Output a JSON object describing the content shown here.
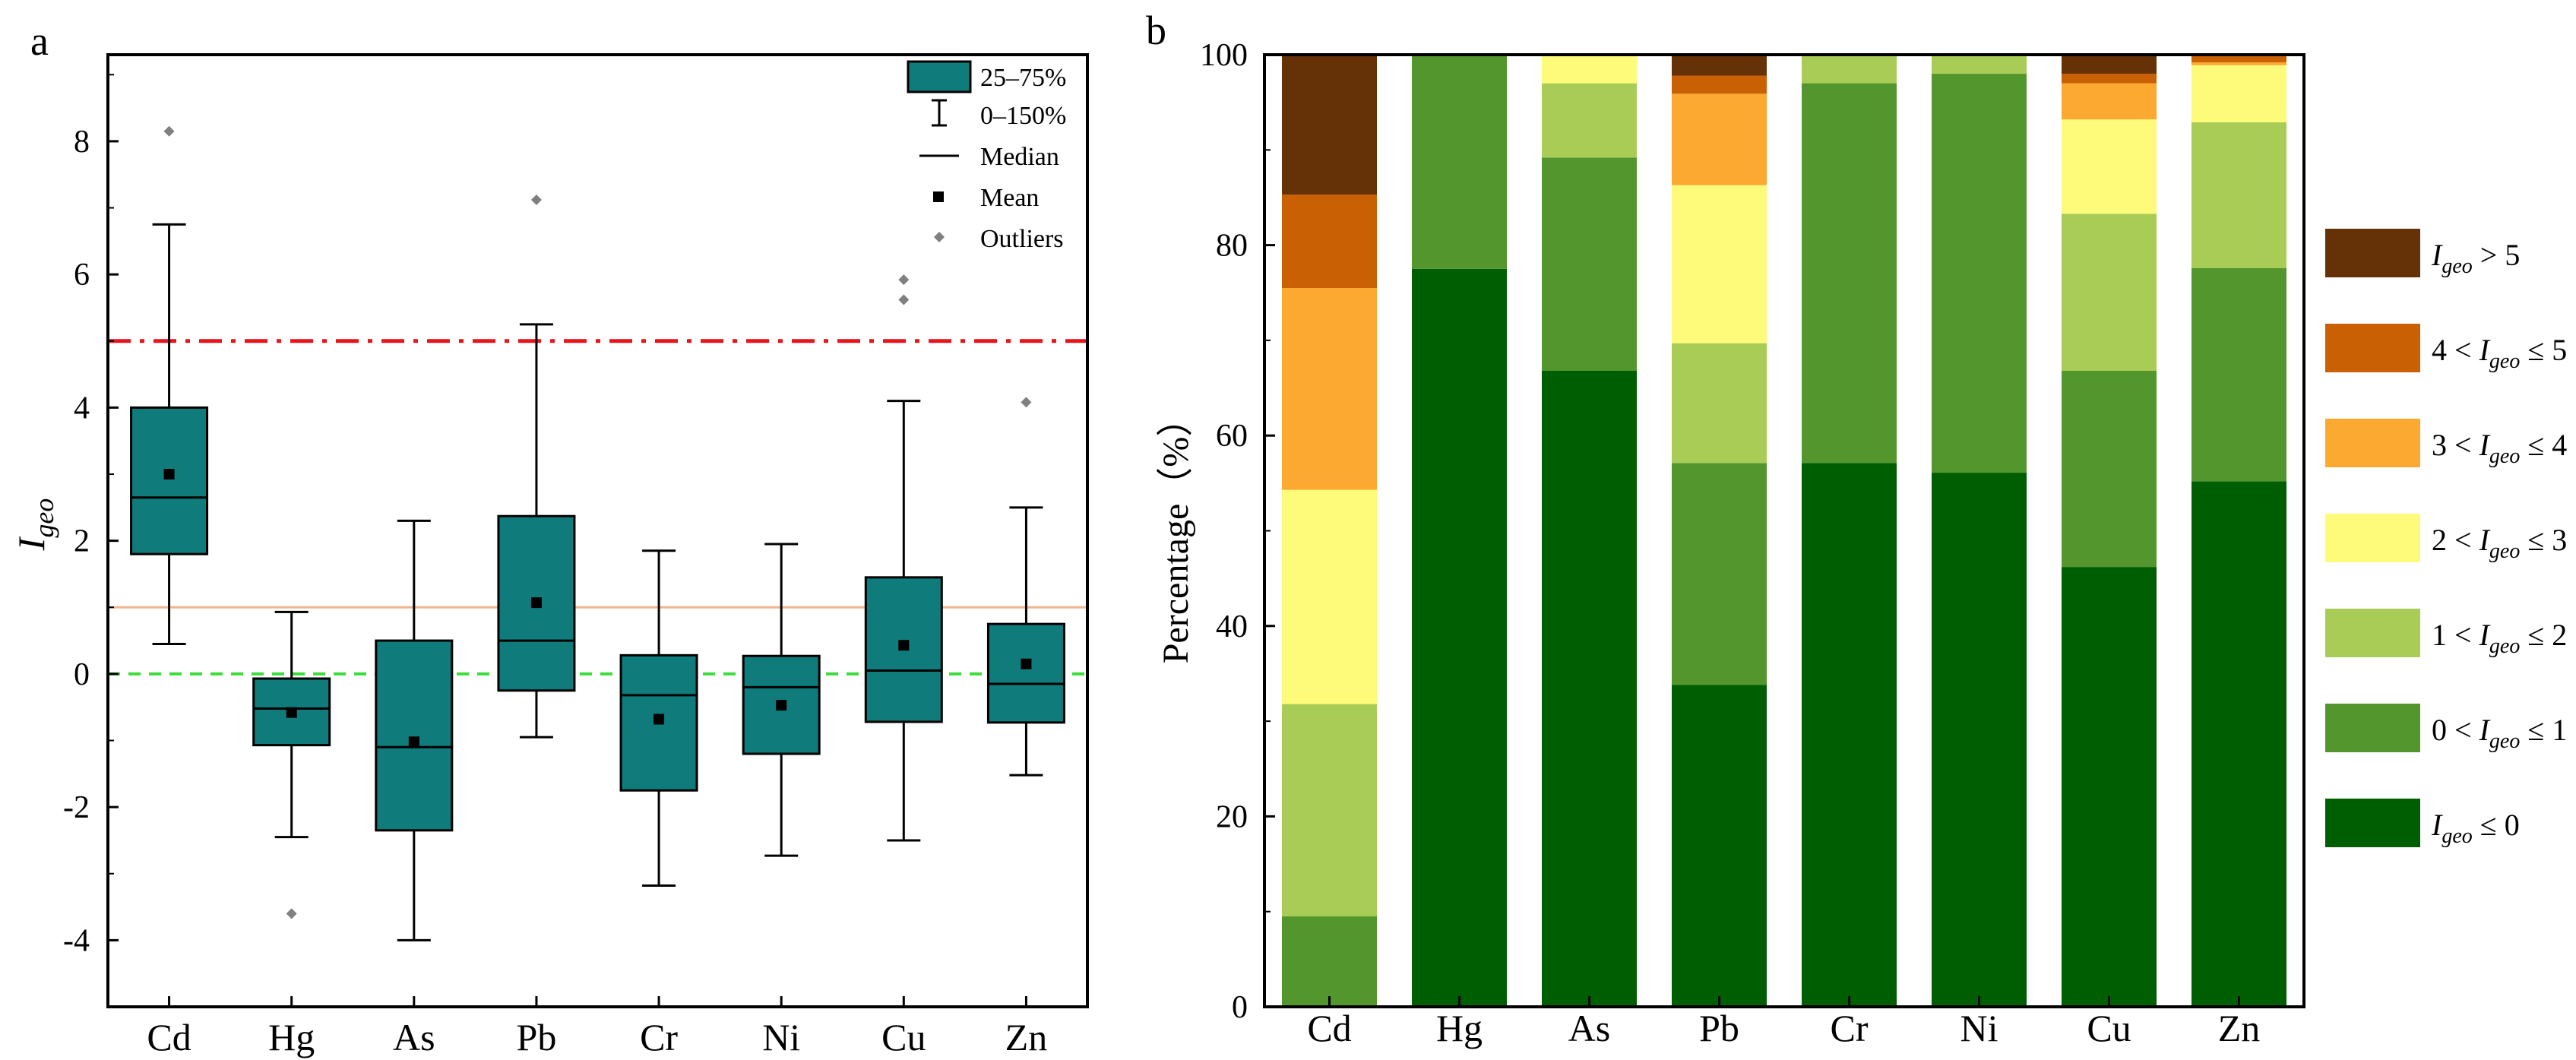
{
  "panel_a": {
    "label": "a",
    "y_axis_label": "I",
    "y_axis_label_sub": "geo",
    "y_ticks": [
      "-4",
      "-2",
      "0",
      "2",
      "4",
      "6",
      "8"
    ],
    "legend": {
      "box": "25–75%",
      "whisker": "0–150%",
      "median": "Median",
      "mean": "Mean",
      "outliers": "Outliers"
    }
  },
  "panel_b": {
    "label": "b",
    "y_axis_label": "Percentage（%）",
    "y_ticks": [
      "0",
      "20",
      "40",
      "60",
      "80",
      "100"
    ],
    "legend": [
      {
        "pre": "",
        "var": "I",
        "sub": "geo",
        "post": " > 5"
      },
      {
        "pre": "4 < ",
        "var": "I",
        "sub": "geo",
        "post": " ≤ 5"
      },
      {
        "pre": "3 < ",
        "var": "I",
        "sub": "geo",
        "post": " ≤ 4"
      },
      {
        "pre": "2 < ",
        "var": "I",
        "sub": "geo",
        "post": " ≤ 3"
      },
      {
        "pre": "1 < ",
        "var": "I",
        "sub": "geo",
        "post": " ≤ 2"
      },
      {
        "pre": "0 < ",
        "var": "I",
        "sub": "geo",
        "post": " ≤ 1"
      },
      {
        "pre": "",
        "var": "I",
        "sub": "geo",
        "post": " ≤ 0"
      }
    ]
  },
  "colors": {
    "box_fill": "#0f7b7b",
    "red_line": "#e8141b",
    "orange_line": "#f5b48c",
    "green_line": "#3ddc3d",
    "outlier": "#808080",
    "classes": [
      "#653106",
      "#c96004",
      "#fba931",
      "#fefb7b",
      "#a9cc56",
      "#53962d",
      "#005e02"
    ]
  },
  "chart_data": [
    {
      "type": "box",
      "title": "a",
      "categories": [
        "Cd",
        "Hg",
        "As",
        "Pb",
        "Cr",
        "Ni",
        "Cu",
        "Zn"
      ],
      "ylabel": "Igeo",
      "ylim": [
        -5,
        9.3
      ],
      "boxes": [
        {
          "name": "Cd",
          "q1": 1.8,
          "median": 2.65,
          "q3": 4.0,
          "mean": 3.0,
          "whisker_low": 0.45,
          "whisker_high": 6.75,
          "outliers": [
            8.15
          ]
        },
        {
          "name": "Hg",
          "q1": -1.07,
          "median": -0.52,
          "q3": -0.07,
          "mean": -0.58,
          "whisker_low": -2.45,
          "whisker_high": 0.93,
          "outliers": [
            -3.6
          ]
        },
        {
          "name": "As",
          "q1": -2.35,
          "median": -1.1,
          "q3": 0.5,
          "mean": -1.02,
          "whisker_low": -4.0,
          "whisker_high": 2.3,
          "outliers": []
        },
        {
          "name": "Pb",
          "q1": -0.25,
          "median": 0.5,
          "q3": 2.37,
          "mean": 1.07,
          "whisker_low": -0.95,
          "whisker_high": 5.25,
          "outliers": [
            7.12
          ]
        },
        {
          "name": "Cr",
          "q1": -1.75,
          "median": -0.32,
          "q3": 0.28,
          "mean": -0.68,
          "whisker_low": -3.18,
          "whisker_high": 1.85,
          "outliers": []
        },
        {
          "name": "Ni",
          "q1": -1.2,
          "median": -0.2,
          "q3": 0.27,
          "mean": -0.47,
          "whisker_low": -2.73,
          "whisker_high": 1.95,
          "outliers": []
        },
        {
          "name": "Cu",
          "q1": -0.72,
          "median": 0.05,
          "q3": 1.45,
          "mean": 0.43,
          "whisker_low": -2.5,
          "whisker_high": 4.1,
          "outliers": [
            5.62,
            5.92
          ]
        },
        {
          "name": "Zn",
          "q1": -0.73,
          "median": -0.15,
          "q3": 0.75,
          "mean": 0.15,
          "whisker_low": -1.52,
          "whisker_high": 2.5,
          "outliers": [
            4.08
          ]
        }
      ],
      "reference_lines": [
        {
          "y": 5,
          "style": "dash-dot",
          "color": "red"
        },
        {
          "y": 1,
          "style": "solid",
          "color": "light-orange"
        },
        {
          "y": 0,
          "style": "dashed",
          "color": "green"
        }
      ]
    },
    {
      "type": "stacked-bar",
      "title": "b",
      "categories": [
        "Cd",
        "Hg",
        "As",
        "Pb",
        "Cr",
        "Ni",
        "Cu",
        "Zn"
      ],
      "ylabel": "Percentage（%）",
      "ylim": [
        0,
        100
      ],
      "series": [
        {
          "name": "Igeo ≤ 0",
          "values": [
            0,
            77.5,
            66.8,
            33.8,
            57.1,
            56.1,
            46.2,
            55.2
          ]
        },
        {
          "name": "0 < Igeo ≤ 1",
          "values": [
            9.5,
            22.5,
            22.4,
            23.3,
            39.9,
            41.9,
            20.6,
            22.4
          ]
        },
        {
          "name": "1 < Igeo ≤ 2",
          "values": [
            22.3,
            0,
            7.8,
            12.6,
            3.0,
            2.0,
            16.5,
            15.3
          ]
        },
        {
          "name": "2 < Igeo ≤ 3",
          "values": [
            22.5,
            0,
            3.0,
            16.6,
            0,
            0,
            9.9,
            6.0
          ]
        },
        {
          "name": "3 < Igeo ≤ 4",
          "values": [
            21.2,
            0,
            0,
            9.6,
            0,
            0,
            3.8,
            0.3
          ]
        },
        {
          "name": "4 < Igeo ≤ 5",
          "values": [
            9.8,
            0,
            0,
            1.9,
            0,
            0,
            1.0,
            0.8
          ]
        },
        {
          "name": "Igeo > 5",
          "values": [
            14.7,
            0,
            0,
            2.2,
            0,
            0,
            2.0,
            0
          ]
        }
      ]
    }
  ]
}
